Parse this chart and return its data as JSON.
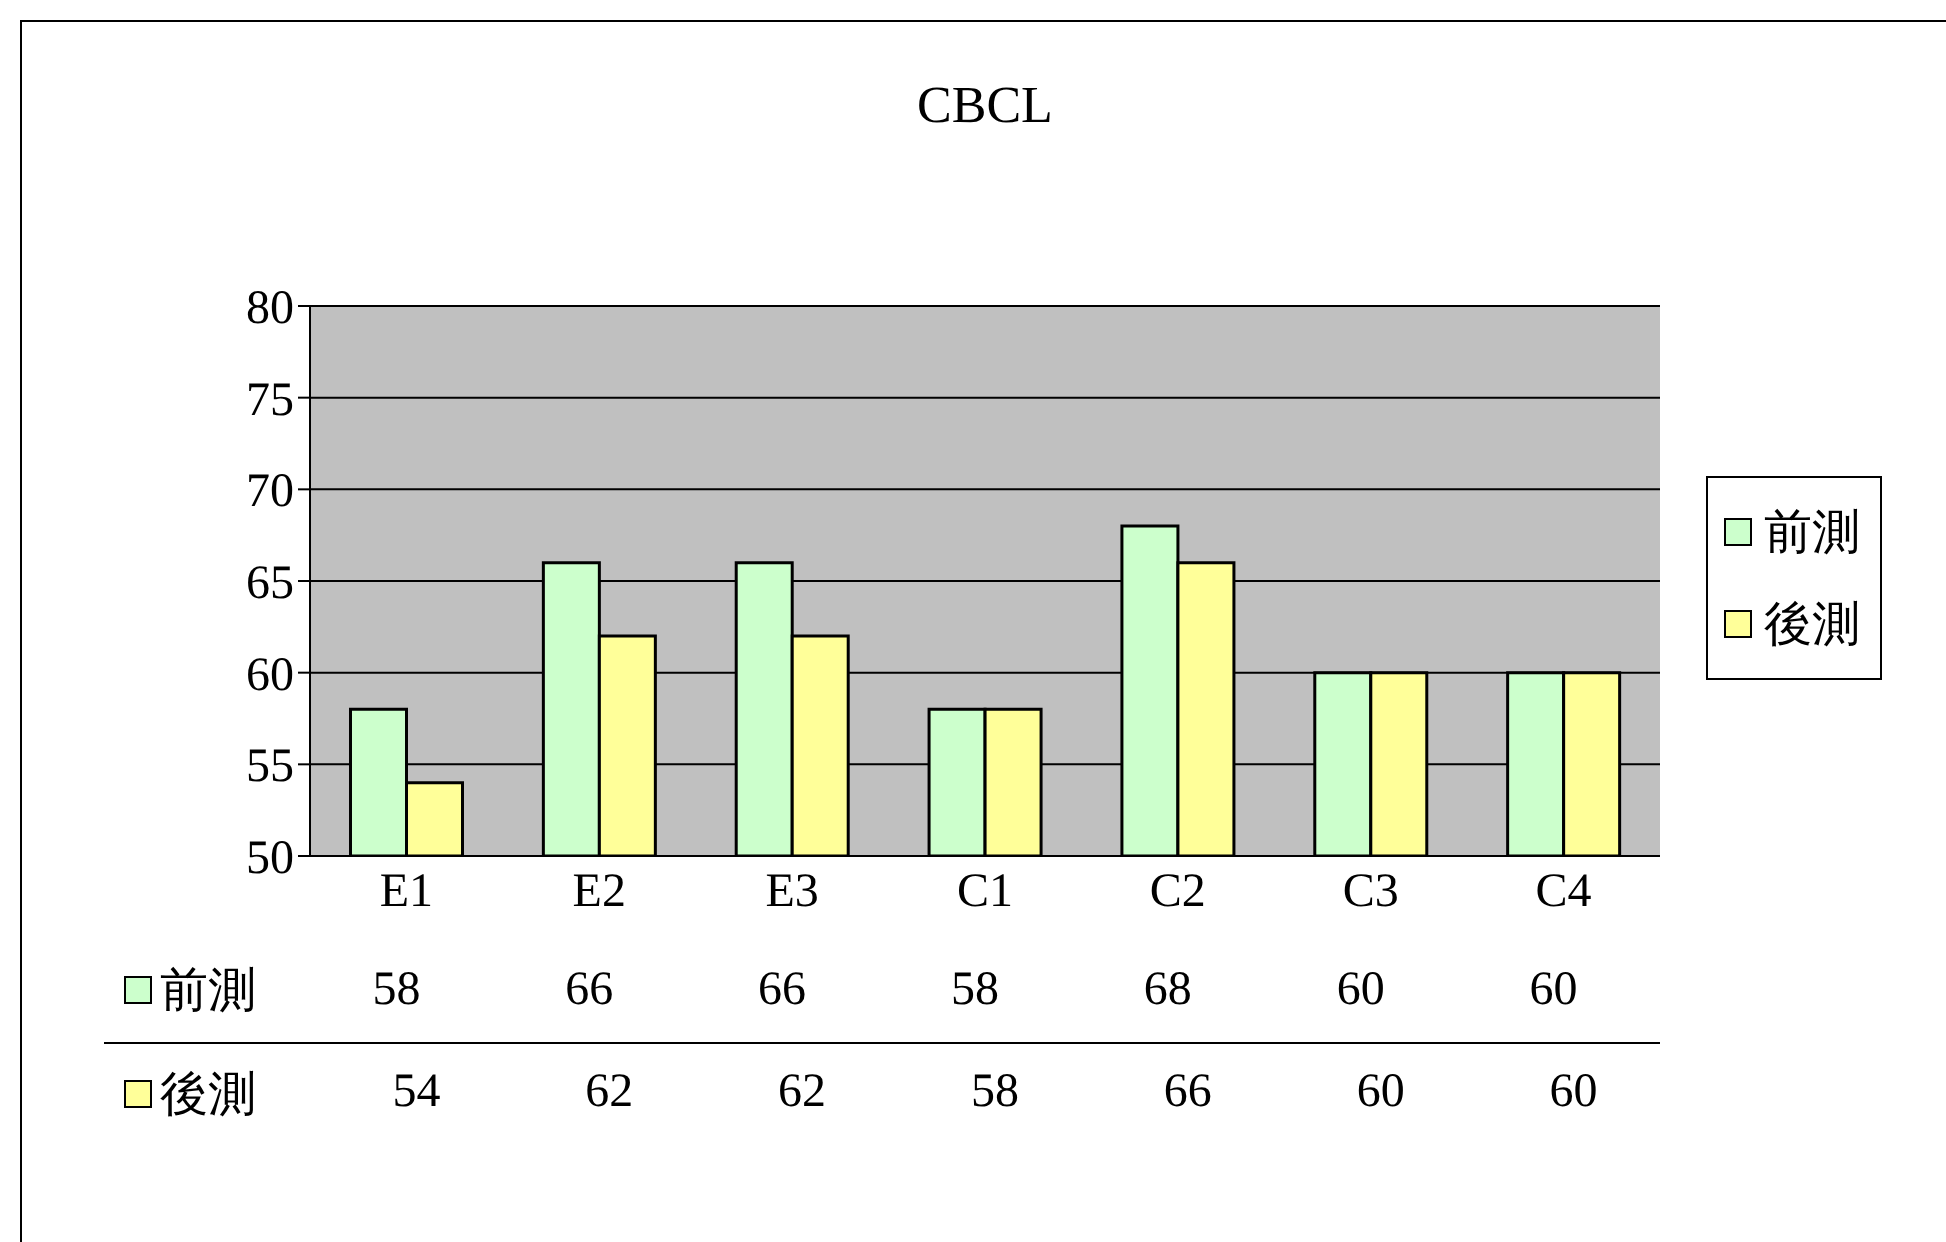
{
  "chart_data": {
    "type": "bar",
    "title": "CBCL",
    "categories": [
      "E1",
      "E2",
      "E3",
      "C1",
      "C2",
      "C3",
      "C4"
    ],
    "series": [
      {
        "name": "前測",
        "color": "#ccffcc",
        "values": [
          58,
          66,
          66,
          58,
          68,
          60,
          60
        ]
      },
      {
        "name": "後測",
        "color": "#ffff99",
        "values": [
          54,
          62,
          62,
          58,
          66,
          60,
          60
        ]
      }
    ],
    "ylim": [
      50,
      80
    ],
    "yticks": [
      50,
      55,
      60,
      65,
      70,
      75,
      80
    ],
    "grid": "y",
    "legend": "right",
    "data_labels": true
  }
}
